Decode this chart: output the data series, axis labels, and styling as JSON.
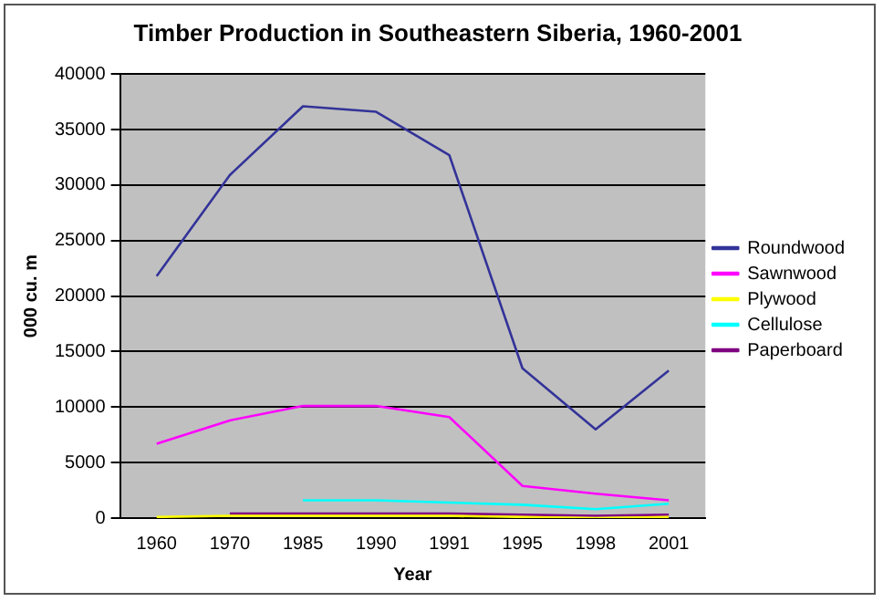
{
  "chart_data": {
    "type": "line",
    "title": "Timber Production in Southeastern Siberia, 1960-2001",
    "xlabel": "Year",
    "ylabel": "000 cu. m",
    "categories": [
      "1960",
      "1970",
      "1985",
      "1990",
      "1991",
      "1995",
      "1998",
      "2001"
    ],
    "series": [
      {
        "name": "Roundwood",
        "color": "#333399",
        "values": [
          21800,
          30900,
          37100,
          36600,
          32700,
          13500,
          8000,
          13300
        ]
      },
      {
        "name": "Sawnwood",
        "color": "#ff00ff",
        "values": [
          6700,
          8800,
          10100,
          10100,
          9100,
          2900,
          2200,
          1600
        ]
      },
      {
        "name": "Plywood",
        "color": "#ffff00",
        "values": [
          100,
          200,
          200,
          200,
          200,
          100,
          0,
          100
        ]
      },
      {
        "name": "Cellulose",
        "color": "#00ffff",
        "values": [
          null,
          null,
          1600,
          1600,
          1400,
          1200,
          800,
          1300
        ]
      },
      {
        "name": "Paperboard",
        "color": "#800080",
        "values": [
          null,
          400,
          400,
          400,
          400,
          300,
          200,
          300
        ]
      }
    ],
    "ylim": [
      0,
      40000
    ],
    "yticks": [
      0,
      5000,
      10000,
      15000,
      20000,
      25000,
      30000,
      35000,
      40000
    ],
    "grid": "y",
    "legend": "right",
    "marker": "none",
    "line_style": "solid"
  }
}
